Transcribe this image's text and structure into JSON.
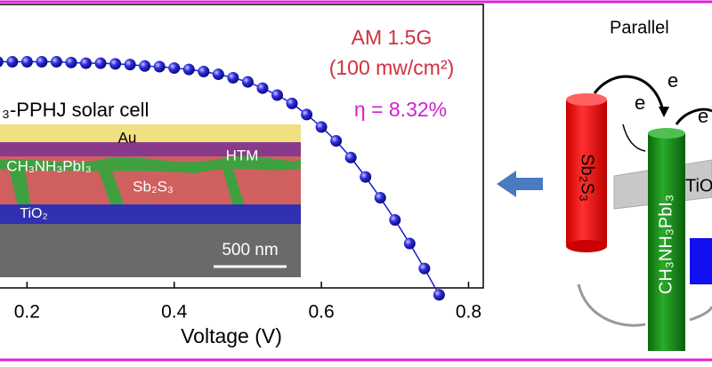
{
  "chart_data": {
    "type": "line",
    "annotations": [
      "AM 1.5G",
      "(100 mw/cm²)",
      "η = 8.32%",
      "₃-PPHJ solar cell"
    ],
    "xlabel": "Voltage (V)",
    "x": [
      0.16,
      0.18,
      0.2,
      0.22,
      0.24,
      0.26,
      0.28,
      0.3,
      0.32,
      0.34,
      0.36,
      0.38,
      0.4,
      0.42,
      0.44,
      0.46,
      0.48,
      0.5,
      0.52,
      0.54,
      0.56,
      0.58,
      0.6,
      0.62,
      0.64,
      0.66,
      0.68,
      0.7,
      0.72,
      0.74,
      0.76
    ],
    "series": [
      {
        "color": "#1a1ad0",
        "values": [
          16.3,
          16.3,
          16.3,
          16.3,
          16.3,
          16.25,
          16.2,
          16.2,
          16.15,
          16.1,
          16.0,
          15.95,
          15.85,
          15.75,
          15.6,
          15.4,
          15.15,
          14.85,
          14.4,
          13.9,
          13.3,
          12.5,
          11.6,
          10.6,
          9.4,
          8.0,
          6.5,
          4.9,
          3.2,
          1.4,
          -0.5
        ]
      }
    ],
    "xlim": [
      0,
      0.82
    ],
    "ylim": [
      0,
      18
    ],
    "xticks": [
      0.2,
      0.4,
      0.6,
      0.8
    ]
  },
  "inset": {
    "labels": [
      "Au",
      "HTM",
      "CH₃NH₃PbI₃",
      "Sb₂S₃",
      "TiO₂",
      "500 nm"
    ]
  },
  "diagram": {
    "title": "Parallel",
    "electrons": [
      "e",
      "e",
      "e"
    ],
    "labels": [
      "Sb₂S₃",
      "CH₃NH₃PbI₃",
      "TiO"
    ]
  }
}
